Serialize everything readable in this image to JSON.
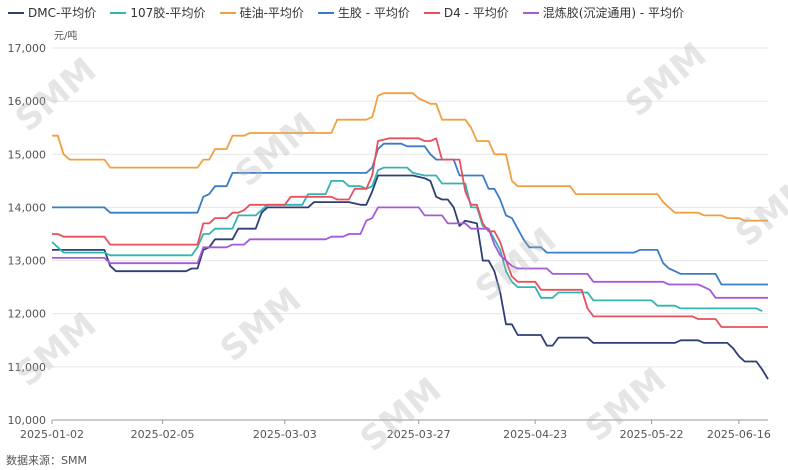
{
  "legend": [
    {
      "name": "DMC-平均价",
      "color": "#2f3f74"
    },
    {
      "name": "107胶-平均价",
      "color": "#33b4b4"
    },
    {
      "name": "硅油-平均价",
      "color": "#f0a040"
    },
    {
      "name": "生胶 - 平均价",
      "color": "#3a7cc8"
    },
    {
      "name": "D4 - 平均价",
      "color": "#e8505b"
    },
    {
      "name": "混炼胶(沉淀通用) - 平均价",
      "color": "#a55ad8"
    }
  ],
  "unit": "元/吨",
  "source": "数据来源：SMM",
  "watermark": "SMM",
  "chart_data": {
    "type": "line",
    "ylim": [
      10000,
      17000
    ],
    "y_ticks": [
      "10,000",
      "11,000",
      "12,000",
      "13,000",
      "14,000",
      "15,000",
      "16,000",
      "17,000"
    ],
    "x_tick_labels": [
      "2025-01-02",
      "2025-02-05",
      "2025-03-03",
      "2025-03-27",
      "2025-04-23",
      "2025-05-22",
      "2025-06-16"
    ],
    "x_tick_indices": [
      0,
      19,
      40,
      63,
      83,
      103,
      118
    ],
    "n_points": 122,
    "grid": true,
    "series": [
      {
        "name": "DMC-平均价",
        "color": "#2f3f74",
        "points": [
          [
            0,
            13200
          ],
          [
            9,
            13200
          ],
          [
            10,
            12900
          ],
          [
            11,
            12800
          ],
          [
            23,
            12800
          ],
          [
            24,
            12850
          ],
          [
            25,
            12850
          ],
          [
            26,
            13200
          ],
          [
            27,
            13250
          ],
          [
            28,
            13400
          ],
          [
            31,
            13400
          ],
          [
            32,
            13600
          ],
          [
            35,
            13600
          ],
          [
            36,
            13900
          ],
          [
            37,
            14000
          ],
          [
            44,
            14000
          ],
          [
            45,
            14100
          ],
          [
            51,
            14100
          ],
          [
            53,
            14050
          ],
          [
            54,
            14050
          ],
          [
            55,
            14300
          ],
          [
            56,
            14600
          ],
          [
            58,
            14600
          ],
          [
            60,
            14600
          ],
          [
            62,
            14600
          ],
          [
            64,
            14550
          ],
          [
            65,
            14500
          ],
          [
            66,
            14200
          ],
          [
            67,
            14150
          ],
          [
            68,
            14150
          ],
          [
            69,
            14000
          ],
          [
            70,
            13650
          ],
          [
            71,
            13750
          ],
          [
            73,
            13700
          ],
          [
            74,
            13000
          ],
          [
            75,
            13000
          ],
          [
            76,
            12800
          ],
          [
            77,
            12400
          ],
          [
            78,
            11800
          ],
          [
            79,
            11800
          ],
          [
            80,
            11600
          ],
          [
            84,
            11600
          ],
          [
            85,
            11400
          ],
          [
            86,
            11400
          ],
          [
            87,
            11550
          ],
          [
            92,
            11550
          ],
          [
            93,
            11450
          ],
          [
            107,
            11450
          ],
          [
            108,
            11500
          ],
          [
            111,
            11500
          ],
          [
            112,
            11450
          ],
          [
            116,
            11450
          ],
          [
            117,
            11350
          ],
          [
            118,
            11200
          ],
          [
            119,
            11100
          ],
          [
            121,
            11100
          ],
          [
            122,
            10950
          ],
          [
            123,
            10770
          ]
        ]
      },
      {
        "name": "107胶-平均价",
        "color": "#33b4b4",
        "points": [
          [
            0,
            13350
          ],
          [
            1,
            13250
          ],
          [
            2,
            13150
          ],
          [
            9,
            13150
          ],
          [
            10,
            13100
          ],
          [
            24,
            13100
          ],
          [
            25,
            13250
          ],
          [
            26,
            13500
          ],
          [
            27,
            13500
          ],
          [
            28,
            13600
          ],
          [
            31,
            13600
          ],
          [
            32,
            13850
          ],
          [
            35,
            13850
          ],
          [
            36,
            13950
          ],
          [
            37,
            14050
          ],
          [
            43,
            14050
          ],
          [
            44,
            14250
          ],
          [
            47,
            14250
          ],
          [
            48,
            14500
          ],
          [
            50,
            14500
          ],
          [
            51,
            14400
          ],
          [
            53,
            14400
          ],
          [
            54,
            14350
          ],
          [
            55,
            14400
          ],
          [
            56,
            14700
          ],
          [
            57,
            14750
          ],
          [
            61,
            14750
          ],
          [
            62,
            14650
          ],
          [
            64,
            14600
          ],
          [
            66,
            14600
          ],
          [
            67,
            14450
          ],
          [
            71,
            14450
          ],
          [
            72,
            14000
          ],
          [
            73,
            14000
          ],
          [
            74,
            13650
          ],
          [
            75,
            13600
          ],
          [
            76,
            13400
          ],
          [
            77,
            13200
          ],
          [
            78,
            12800
          ],
          [
            79,
            12600
          ],
          [
            80,
            12500
          ],
          [
            83,
            12500
          ],
          [
            84,
            12300
          ],
          [
            86,
            12300
          ],
          [
            87,
            12400
          ],
          [
            92,
            12400
          ],
          [
            93,
            12250
          ],
          [
            103,
            12250
          ],
          [
            104,
            12150
          ],
          [
            107,
            12150
          ],
          [
            108,
            12100
          ],
          [
            118,
            12100
          ],
          [
            121,
            12100
          ],
          [
            122,
            12050
          ]
        ]
      },
      {
        "name": "硅油-平均价",
        "color": "#f0a040",
        "points": [
          [
            0,
            15350
          ],
          [
            1,
            15350
          ],
          [
            2,
            15000
          ],
          [
            3,
            14900
          ],
          [
            9,
            14900
          ],
          [
            10,
            14750
          ],
          [
            25,
            14750
          ],
          [
            26,
            14900
          ],
          [
            27,
            14900
          ],
          [
            28,
            15100
          ],
          [
            30,
            15100
          ],
          [
            31,
            15350
          ],
          [
            33,
            15350
          ],
          [
            34,
            15400
          ],
          [
            48,
            15400
          ],
          [
            49,
            15650
          ],
          [
            54,
            15650
          ],
          [
            55,
            15700
          ],
          [
            56,
            16100
          ],
          [
            57,
            16150
          ],
          [
            62,
            16150
          ],
          [
            63,
            16050
          ],
          [
            64,
            16000
          ],
          [
            65,
            15950
          ],
          [
            66,
            15950
          ],
          [
            67,
            15650
          ],
          [
            71,
            15650
          ],
          [
            72,
            15500
          ],
          [
            73,
            15250
          ],
          [
            75,
            15250
          ],
          [
            76,
            15000
          ],
          [
            78,
            15000
          ],
          [
            79,
            14500
          ],
          [
            80,
            14400
          ],
          [
            89,
            14400
          ],
          [
            90,
            14250
          ],
          [
            104,
            14250
          ],
          [
            105,
            14100
          ],
          [
            106,
            14000
          ],
          [
            107,
            13900
          ],
          [
            111,
            13900
          ],
          [
            112,
            13850
          ],
          [
            115,
            13850
          ],
          [
            116,
            13800
          ],
          [
            118,
            13800
          ],
          [
            119,
            13750
          ],
          [
            123,
            13750
          ]
        ]
      },
      {
        "name": "生胶 - 平均价",
        "color": "#3a7cc8",
        "points": [
          [
            0,
            14000
          ],
          [
            9,
            14000
          ],
          [
            10,
            13900
          ],
          [
            25,
            13900
          ],
          [
            26,
            14200
          ],
          [
            27,
            14250
          ],
          [
            28,
            14400
          ],
          [
            30,
            14400
          ],
          [
            31,
            14650
          ],
          [
            53,
            14650
          ],
          [
            54,
            14650
          ],
          [
            55,
            14750
          ],
          [
            56,
            15100
          ],
          [
            57,
            15200
          ],
          [
            60,
            15200
          ],
          [
            61,
            15150
          ],
          [
            64,
            15150
          ],
          [
            65,
            15000
          ],
          [
            66,
            14900
          ],
          [
            69,
            14900
          ],
          [
            70,
            14600
          ],
          [
            74,
            14600
          ],
          [
            75,
            14350
          ],
          [
            76,
            14350
          ],
          [
            77,
            14150
          ],
          [
            78,
            13850
          ],
          [
            79,
            13800
          ],
          [
            80,
            13600
          ],
          [
            81,
            13400
          ],
          [
            82,
            13250
          ],
          [
            84,
            13250
          ],
          [
            85,
            13150
          ],
          [
            100,
            13150
          ],
          [
            101,
            13200
          ],
          [
            104,
            13200
          ],
          [
            105,
            12950
          ],
          [
            106,
            12850
          ],
          [
            107,
            12800
          ],
          [
            108,
            12750
          ],
          [
            114,
            12750
          ],
          [
            115,
            12550
          ],
          [
            123,
            12550
          ]
        ]
      },
      {
        "name": "D4 - 平均价",
        "color": "#e8505b",
        "points": [
          [
            0,
            13500
          ],
          [
            1,
            13500
          ],
          [
            2,
            13450
          ],
          [
            9,
            13450
          ],
          [
            10,
            13300
          ],
          [
            25,
            13300
          ],
          [
            26,
            13700
          ],
          [
            27,
            13700
          ],
          [
            28,
            13800
          ],
          [
            30,
            13800
          ],
          [
            31,
            13900
          ],
          [
            32,
            13900
          ],
          [
            33,
            13950
          ],
          [
            34,
            14050
          ],
          [
            40,
            14050
          ],
          [
            41,
            14200
          ],
          [
            48,
            14200
          ],
          [
            49,
            14150
          ],
          [
            51,
            14150
          ],
          [
            52,
            14350
          ],
          [
            54,
            14350
          ],
          [
            55,
            14600
          ],
          [
            56,
            15250
          ],
          [
            58,
            15300
          ],
          [
            63,
            15300
          ],
          [
            64,
            15250
          ],
          [
            65,
            15250
          ],
          [
            66,
            15300
          ],
          [
            67,
            14900
          ],
          [
            70,
            14900
          ],
          [
            71,
            14300
          ],
          [
            72,
            14050
          ],
          [
            73,
            14050
          ],
          [
            74,
            13700
          ],
          [
            75,
            13550
          ],
          [
            76,
            13550
          ],
          [
            77,
            13350
          ],
          [
            78,
            13000
          ],
          [
            79,
            12700
          ],
          [
            80,
            12600
          ],
          [
            83,
            12600
          ],
          [
            84,
            12450
          ],
          [
            91,
            12450
          ],
          [
            92,
            12100
          ],
          [
            93,
            11950
          ],
          [
            110,
            11950
          ],
          [
            111,
            11900
          ],
          [
            114,
            11900
          ],
          [
            115,
            11750
          ],
          [
            123,
            11750
          ]
        ]
      },
      {
        "name": "混炼胶(沉淀通用) - 平均价",
        "color": "#a55ad8",
        "points": [
          [
            0,
            13050
          ],
          [
            9,
            13050
          ],
          [
            10,
            12950
          ],
          [
            25,
            12950
          ],
          [
            26,
            13250
          ],
          [
            27,
            13250
          ],
          [
            30,
            13250
          ],
          [
            31,
            13300
          ],
          [
            33,
            13300
          ],
          [
            34,
            13400
          ],
          [
            47,
            13400
          ],
          [
            48,
            13450
          ],
          [
            50,
            13450
          ],
          [
            51,
            13500
          ],
          [
            53,
            13500
          ],
          [
            54,
            13750
          ],
          [
            55,
            13800
          ],
          [
            56,
            14000
          ],
          [
            63,
            14000
          ],
          [
            64,
            13850
          ],
          [
            66,
            13850
          ],
          [
            67,
            13850
          ],
          [
            68,
            13700
          ],
          [
            71,
            13700
          ],
          [
            72,
            13600
          ],
          [
            75,
            13600
          ],
          [
            76,
            13300
          ],
          [
            77,
            13100
          ],
          [
            78,
            13000
          ],
          [
            79,
            12900
          ],
          [
            80,
            12850
          ],
          [
            85,
            12850
          ],
          [
            86,
            12750
          ],
          [
            92,
            12750
          ],
          [
            93,
            12600
          ],
          [
            105,
            12600
          ],
          [
            106,
            12550
          ],
          [
            111,
            12550
          ],
          [
            112,
            12500
          ],
          [
            113,
            12450
          ],
          [
            114,
            12300
          ],
          [
            123,
            12300
          ]
        ]
      }
    ]
  }
}
